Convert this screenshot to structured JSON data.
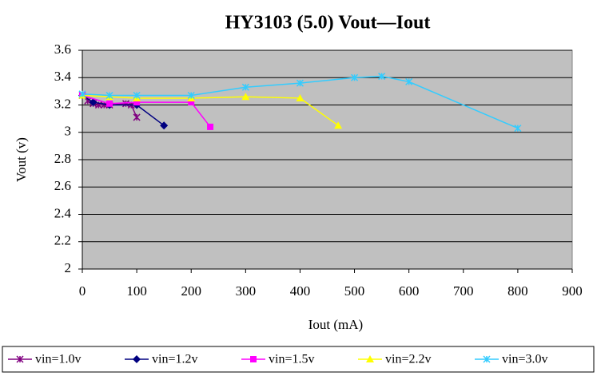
{
  "chart_data": {
    "type": "line",
    "title": "HY3103 (5.0) Vout—Iout",
    "x_label": "Iout (mA)",
    "y_label": "Vout (v)",
    "xlim": [
      0,
      900
    ],
    "xticks": [
      0,
      100,
      200,
      300,
      400,
      500,
      600,
      700,
      800,
      900
    ],
    "ylim": [
      2,
      3.6
    ],
    "yticks": [
      2,
      2.2,
      2.4,
      2.6,
      2.8,
      3,
      3.2,
      3.4,
      3.6
    ],
    "grid": true,
    "legend": "bottom",
    "series": [
      {
        "name": "vin=1.0v",
        "color": "#800080",
        "marker": "star",
        "x": [
          0,
          10,
          20,
          30,
          40,
          50,
          80,
          90,
          100
        ],
        "values": [
          3.27,
          3.23,
          3.21,
          3.2,
          3.2,
          3.2,
          3.21,
          3.2,
          3.11
        ]
      },
      {
        "name": "vin=1.2v",
        "color": "#000080",
        "marker": "diamond",
        "x": [
          0,
          20,
          50,
          100,
          150
        ],
        "values": [
          3.27,
          3.22,
          3.2,
          3.2,
          3.05
        ]
      },
      {
        "name": "vin=1.5v",
        "color": "#ff00ff",
        "marker": "square",
        "x": [
          0,
          50,
          100,
          200,
          235
        ],
        "values": [
          3.27,
          3.21,
          3.22,
          3.22,
          3.04
        ]
      },
      {
        "name": "vin=2.2v",
        "color": "#ffff00",
        "marker": "triangle",
        "x": [
          0,
          50,
          100,
          200,
          300,
          400,
          470
        ],
        "values": [
          3.27,
          3.26,
          3.25,
          3.25,
          3.26,
          3.25,
          3.05
        ]
      },
      {
        "name": "vin=3.0v",
        "color": "#33ccff",
        "marker": "star",
        "x": [
          0,
          50,
          100,
          200,
          300,
          400,
          500,
          550,
          600,
          800
        ],
        "values": [
          3.28,
          3.27,
          3.27,
          3.27,
          3.33,
          3.36,
          3.4,
          3.41,
          3.37,
          3.03
        ]
      }
    ]
  }
}
